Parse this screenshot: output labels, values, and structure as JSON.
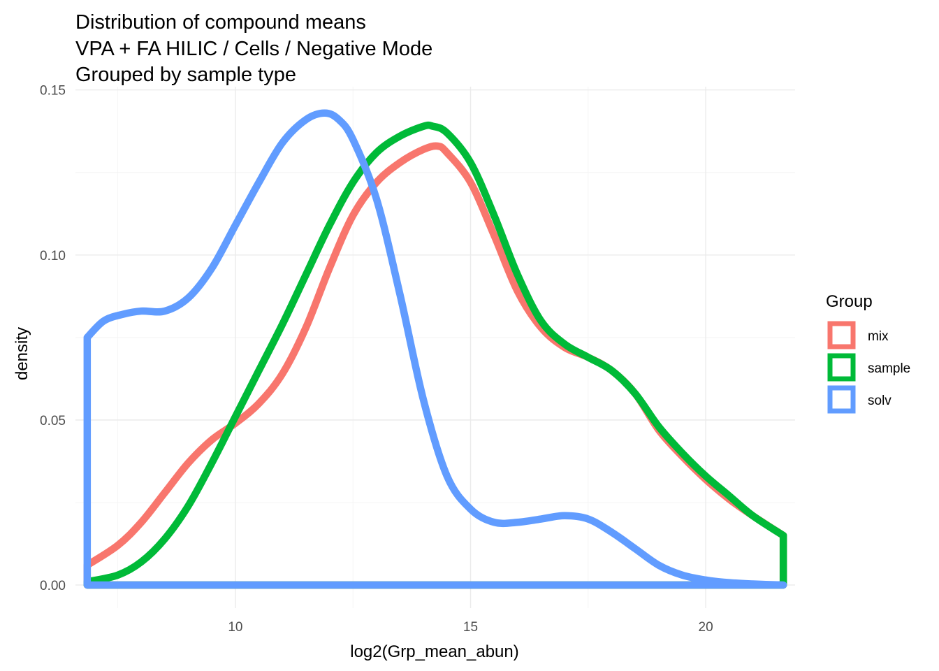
{
  "chart_data": {
    "type": "line",
    "subtype": "density",
    "title_lines": [
      "Distribution of compound means",
      "VPA + FA HILIC / Cells / Negative Mode",
      "Grouped by sample type"
    ],
    "xlabel": "log2(Grp_mean_abun)",
    "ylabel": "density",
    "xlim": [
      6.6,
      21.9
    ],
    "ylim": [
      -0.007,
      0.151
    ],
    "x_ticks": [
      10,
      15,
      20
    ],
    "x_tick_labels": [
      "10",
      "15",
      "20"
    ],
    "y_ticks": [
      0,
      0.05,
      0.1,
      0.15
    ],
    "y_tick_labels": [
      "0.00",
      "0.05",
      "0.10",
      "0.15"
    ],
    "grid": true,
    "legend": {
      "title": "Group",
      "position": "right"
    },
    "series": [
      {
        "name": "mix",
        "color": "#F8766D",
        "x": [
          6.85,
          7.5,
          8.0,
          8.5,
          9.0,
          9.5,
          10.0,
          10.5,
          11.0,
          11.5,
          12.0,
          12.5,
          13.0,
          13.5,
          14.0,
          14.3,
          14.5,
          15.0,
          15.5,
          16.0,
          16.5,
          17.0,
          17.5,
          18.0,
          18.5,
          19.0,
          19.5,
          20.0,
          20.5,
          21.0,
          21.65
        ],
        "values": [
          0.006,
          0.012,
          0.019,
          0.028,
          0.037,
          0.044,
          0.049,
          0.055,
          0.064,
          0.078,
          0.096,
          0.112,
          0.122,
          0.128,
          0.132,
          0.133,
          0.131,
          0.122,
          0.106,
          0.089,
          0.078,
          0.072,
          0.069,
          0.065,
          0.058,
          0.047,
          0.039,
          0.032,
          0.026,
          0.021,
          0.015
        ]
      },
      {
        "name": "sample",
        "color": "#00BA38",
        "x": [
          6.85,
          7.5,
          8.0,
          8.5,
          9.0,
          9.5,
          10.0,
          10.5,
          11.0,
          11.5,
          12.0,
          12.5,
          13.0,
          13.5,
          14.0,
          14.2,
          14.5,
          15.0,
          15.5,
          16.0,
          16.5,
          17.0,
          17.5,
          18.0,
          18.5,
          19.0,
          19.5,
          20.0,
          20.5,
          21.0,
          21.65
        ],
        "values": [
          0.001,
          0.003,
          0.007,
          0.014,
          0.024,
          0.037,
          0.051,
          0.065,
          0.079,
          0.094,
          0.109,
          0.122,
          0.131,
          0.136,
          0.139,
          0.139,
          0.137,
          0.128,
          0.112,
          0.094,
          0.08,
          0.073,
          0.069,
          0.065,
          0.058,
          0.048,
          0.04,
          0.033,
          0.027,
          0.021,
          0.015
        ]
      },
      {
        "name": "solv",
        "color": "#619CFF",
        "x": [
          6.85,
          7.2,
          7.6,
          8.0,
          8.5,
          9.0,
          9.5,
          10.0,
          10.5,
          11.0,
          11.5,
          11.9,
          12.2,
          12.5,
          13.0,
          13.5,
          14.0,
          14.5,
          15.0,
          15.5,
          16.0,
          16.5,
          17.0,
          17.5,
          18.0,
          18.5,
          19.0,
          19.5,
          20.0,
          20.5,
          21.0,
          21.65
        ],
        "values": [
          0.075,
          0.08,
          0.082,
          0.083,
          0.083,
          0.087,
          0.096,
          0.109,
          0.122,
          0.134,
          0.141,
          0.143,
          0.141,
          0.135,
          0.117,
          0.088,
          0.056,
          0.033,
          0.023,
          0.019,
          0.019,
          0.02,
          0.021,
          0.02,
          0.016,
          0.011,
          0.006,
          0.003,
          0.0015,
          0.0007,
          0.0003,
          0.0
        ]
      }
    ]
  }
}
